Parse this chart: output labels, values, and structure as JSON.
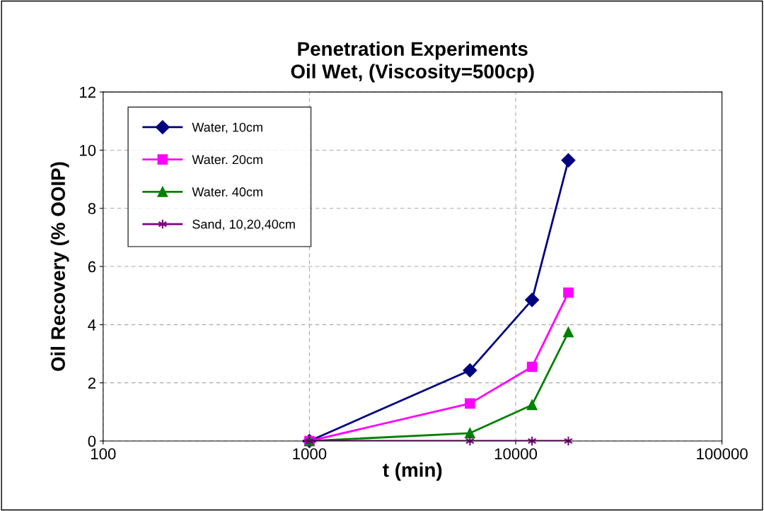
{
  "chart_data": {
    "type": "line",
    "title": "Penetration Experiments\nOil Wet, (Viscosity=500cp)",
    "xlabel": "t (min)",
    "ylabel": "Oil Recovery (% OOIP)",
    "log": "x",
    "xlim": [
      100,
      100000
    ],
    "xticks": [
      100,
      1000,
      10000,
      100000
    ],
    "ylim": [
      0,
      12
    ],
    "yticks": [
      0,
      2,
      4,
      6,
      8,
      10,
      12
    ],
    "grid": true,
    "legend": "top left",
    "x": [
      1000,
      6000,
      12000,
      18000
    ],
    "series": [
      {
        "name": "Water, 10cm",
        "color": "#000080",
        "marker": "diamond",
        "values": [
          0,
          2.43,
          4.85,
          9.65
        ]
      },
      {
        "name": "Water. 20cm",
        "color": "#ff00ff",
        "marker": "square",
        "values": [
          0,
          1.29,
          2.55,
          5.1
        ]
      },
      {
        "name": "Water. 40cm",
        "color": "#008000",
        "marker": "triangle",
        "values": [
          0,
          0.27,
          1.24,
          3.74
        ]
      },
      {
        "name": "Sand, 10,20,40cm",
        "color": "#800080",
        "marker": "cross",
        "values": [
          0,
          0,
          0,
          0
        ]
      }
    ]
  }
}
